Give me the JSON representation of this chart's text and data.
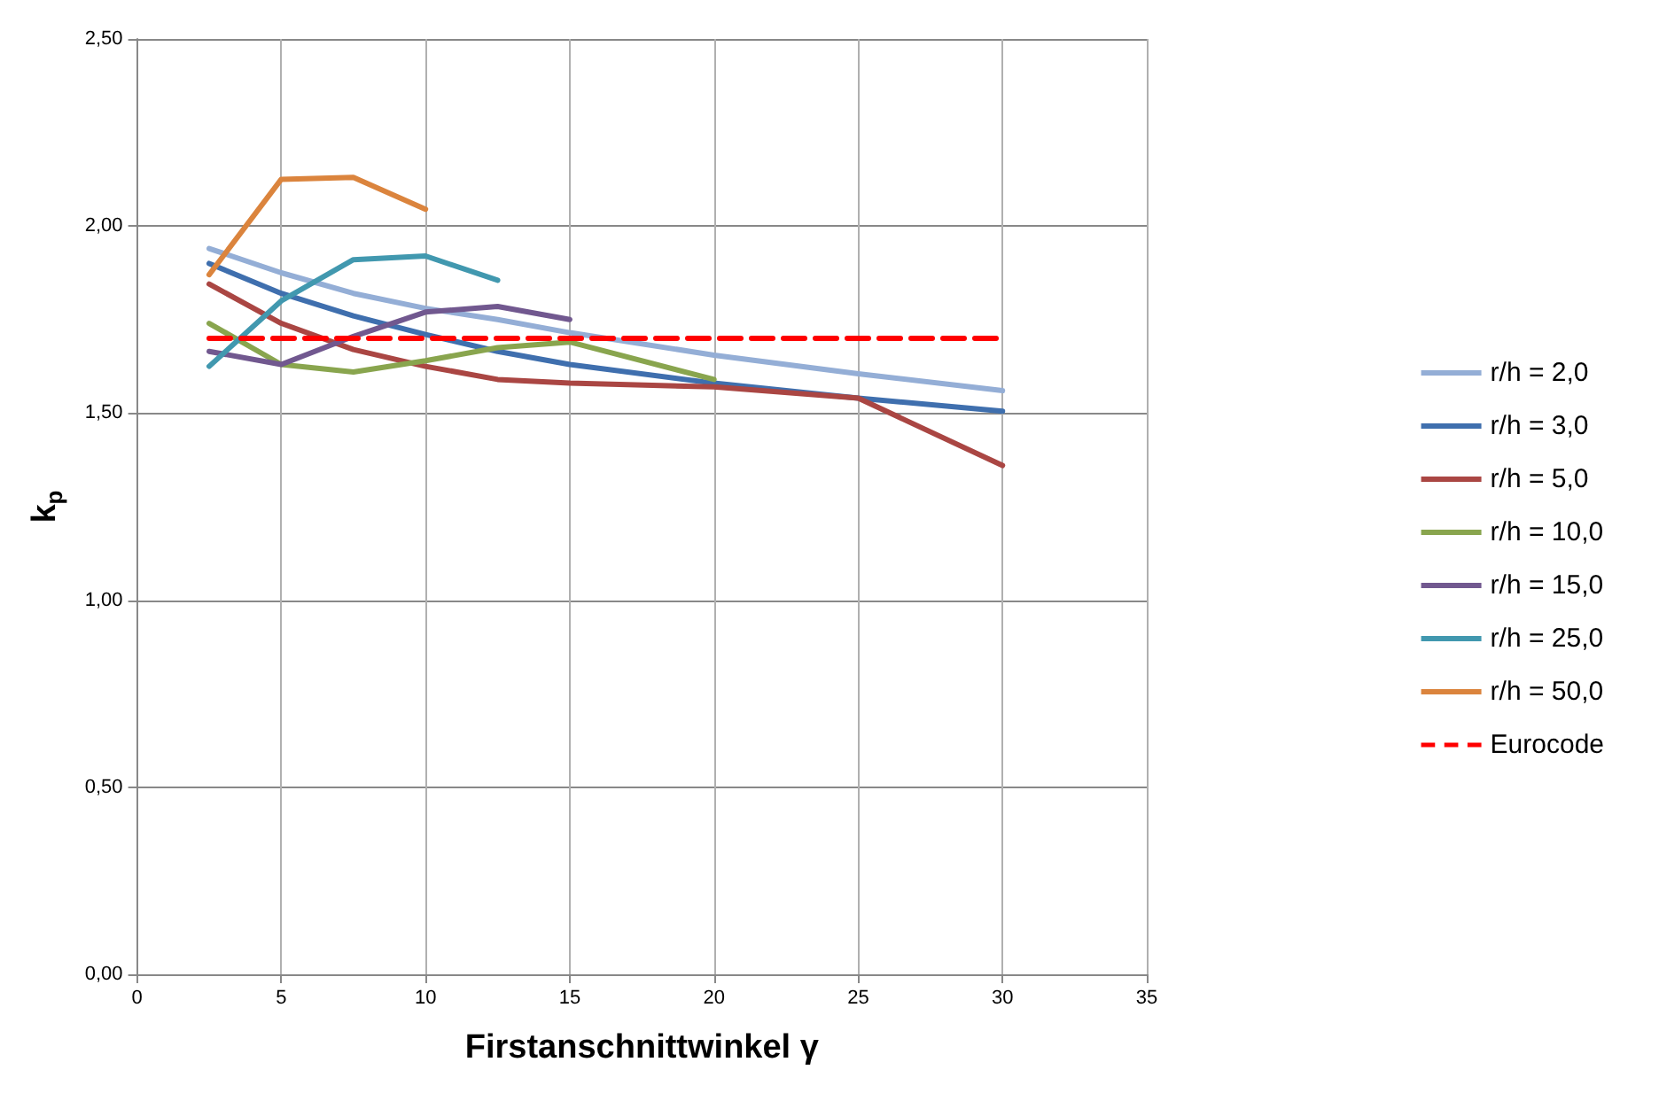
{
  "chart_data": {
    "type": "line",
    "xlabel": "Firstanschnittwinkel γ",
    "ylabel": "k$_{p}$",
    "x": [
      2.5,
      5,
      7.5,
      10,
      12.5,
      15,
      20,
      25,
      30
    ],
    "series": [
      {
        "name": "r/h = 2,0",
        "color": "#94aed6",
        "values": [
          1.94,
          1.875,
          1.82,
          1.78,
          1.75,
          1.715,
          1.655,
          1.605,
          1.56
        ]
      },
      {
        "name": "r/h = 3,0",
        "color": "#3f6fae",
        "values": [
          1.9,
          1.82,
          1.76,
          1.71,
          1.665,
          1.63,
          1.58,
          1.54,
          1.505
        ]
      },
      {
        "name": "r/h = 5,0",
        "color": "#aa4643",
        "values": [
          1.845,
          1.74,
          1.67,
          1.625,
          1.59,
          1.58,
          1.57,
          1.54,
          1.36
        ]
      },
      {
        "name": "r/h = 10,0",
        "color": "#89a54e",
        "values": [
          1.74,
          1.63,
          1.61,
          1.64,
          1.675,
          1.69,
          1.59,
          null,
          null
        ]
      },
      {
        "name": "r/h = 15,0",
        "color": "#71588f",
        "values": [
          1.665,
          1.63,
          1.705,
          1.77,
          1.785,
          1.75,
          null,
          null,
          null
        ]
      },
      {
        "name": "r/h = 25,0",
        "color": "#4198af",
        "values": [
          1.625,
          1.8,
          1.91,
          1.92,
          1.855,
          null,
          null,
          null,
          null
        ]
      },
      {
        "name": "r/h = 50,0",
        "color": "#db843d",
        "values": [
          1.87,
          2.125,
          2.13,
          2.045,
          null,
          null,
          null,
          null,
          null
        ]
      },
      {
        "name": "Eurocode",
        "color": "#ff0000",
        "line_style": "dashed",
        "x": [
          2.5,
          30
        ],
        "values": [
          1.7,
          1.7
        ]
      }
    ],
    "xlim": [
      0,
      35
    ],
    "xticks": [
      0,
      5,
      10,
      15,
      20,
      25,
      30,
      35
    ],
    "ylim": [
      0,
      2.5
    ],
    "yticks": [
      {
        "value": 0,
        "label": "0,00"
      },
      {
        "value": 0.5,
        "label": "0,50"
      },
      {
        "value": 1,
        "label": "1,00"
      },
      {
        "value": 1.5,
        "label": "1,50"
      },
      {
        "value": 2,
        "label": "2,00"
      },
      {
        "value": 2.5,
        "label": "2,50"
      }
    ],
    "grid": true,
    "legend": "right",
    "marker": "none",
    "line_style": "solid"
  }
}
